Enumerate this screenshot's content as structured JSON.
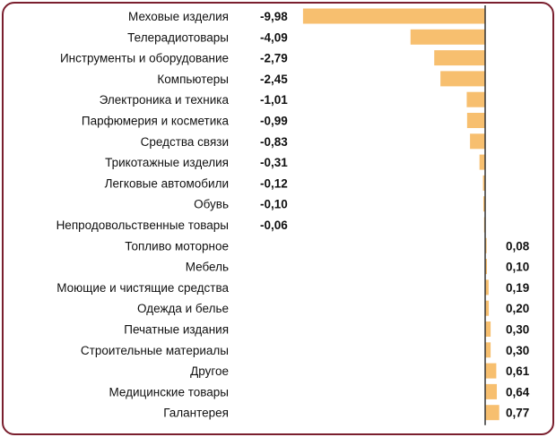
{
  "chart_data": {
    "type": "bar",
    "orientation": "horizontal",
    "categories": [
      "Меховые изделия",
      "Телерадиотовары",
      "Инструменты и оборудование",
      "Компьютеры",
      "Электроника и техника",
      "Парфюмерия и косметика",
      "Средства связи",
      "Трикотажные изделия",
      "Легковые автомобили",
      "Обувь",
      "Непродовольственные товары",
      "Топливо моторное",
      "Мебель",
      "Моющие и чистящие средства",
      "Одежда и белье",
      "Печатные издания",
      "Строительные материалы",
      "Другое",
      "Медицинские товары",
      "Галантерея"
    ],
    "values": [
      -9.98,
      -4.09,
      -2.79,
      -2.45,
      -1.01,
      -0.99,
      -0.83,
      -0.31,
      -0.12,
      -0.1,
      -0.06,
      0.08,
      0.1,
      0.19,
      0.2,
      0.3,
      0.3,
      0.61,
      0.64,
      0.77
    ],
    "value_labels": [
      "-9,98",
      "-4,09",
      "-2,79",
      "-2,45",
      "-1,01",
      "-0,99",
      "-0,83",
      "-0,31",
      "-0,12",
      "-0,10",
      "-0,06",
      "0,08",
      "0,10",
      "0,19",
      "0,20",
      "0,30",
      "0,30",
      "0,61",
      "0,64",
      "0,77"
    ],
    "bar_color": "#f7bf6f",
    "axis_color": "#333333",
    "frame_color": "#7a1f2e",
    "title": "",
    "xlabel": "",
    "ylabel": "",
    "legend": false,
    "grid": false
  }
}
